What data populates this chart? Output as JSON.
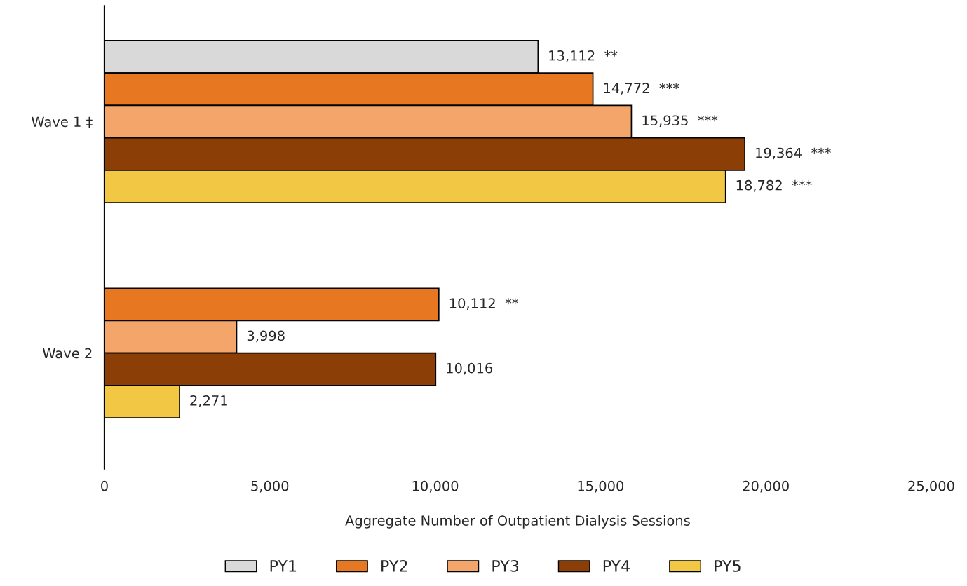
{
  "chart_data": {
    "type": "bar",
    "orientation": "horizontal",
    "xlabel": "Aggregate Number of Outpatient Dialysis Sessions",
    "categories": [
      "Wave 1 ‡",
      "Wave 2"
    ],
    "series": [
      {
        "name": "PY1",
        "color": "#d9d9d9",
        "values": [
          13112,
          null
        ],
        "value_labels": [
          "13,112  **",
          null
        ]
      },
      {
        "name": "PY2",
        "color": "#e87722",
        "values": [
          14772,
          10112
        ],
        "value_labels": [
          "14,772  ***",
          "10,112  **"
        ]
      },
      {
        "name": "PY3",
        "color": "#f4a66a",
        "values": [
          15935,
          3998
        ],
        "value_labels": [
          "15,935  ***",
          "3,998"
        ]
      },
      {
        "name": "PY4",
        "color": "#8b3e06",
        "values": [
          19364,
          10016
        ],
        "value_labels": [
          "19,364  ***",
          "10,016"
        ]
      },
      {
        "name": "PY5",
        "color": "#f2c744",
        "values": [
          18782,
          2271
        ],
        "value_labels": [
          "18,782  ***",
          "2,271"
        ]
      }
    ],
    "xlim": [
      0,
      25000
    ],
    "xticks": [
      0,
      {
        "value": 5000,
        "label": "5,000"
      },
      {
        "value": 10000,
        "label": "10,000"
      },
      {
        "value": 15000,
        "label": "15,000"
      },
      {
        "value": 20000,
        "label": "20,000"
      },
      {
        "value": 25000,
        "label": "25,000"
      }
    ],
    "grid": false,
    "legend": "bottom"
  }
}
